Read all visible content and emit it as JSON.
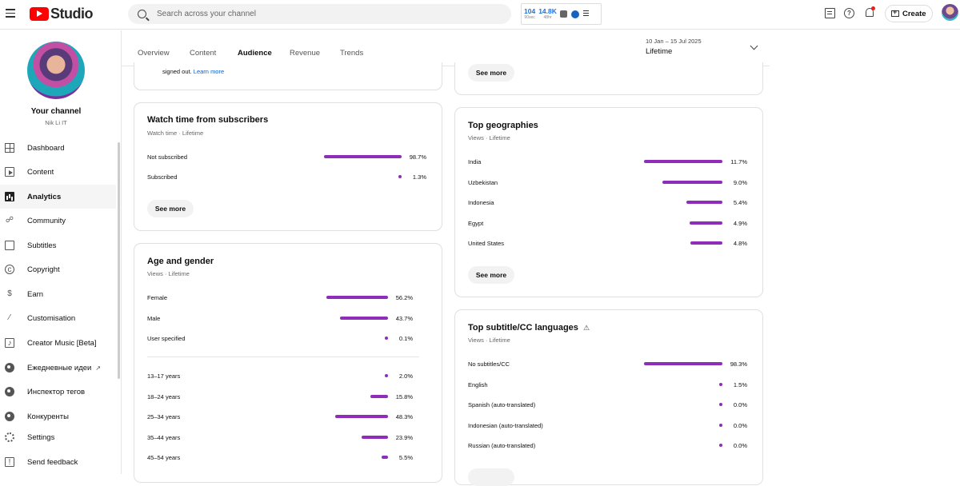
{
  "app": {
    "logo_text": "Studio",
    "search_placeholder": "Search across your channel"
  },
  "extension": {
    "stat1_value": "104",
    "stat1_label": "90sec",
    "stat2_value": "14.8K",
    "stat2_label": "48hr"
  },
  "header": {
    "create_label": "Create"
  },
  "channel": {
    "title": "Your channel",
    "name": "Nik Li IT"
  },
  "sidebar": {
    "items": [
      {
        "label": "Dashboard",
        "icon": "dashboard-icon"
      },
      {
        "label": "Content",
        "icon": "content-icon"
      },
      {
        "label": "Analytics",
        "icon": "analytics-icon",
        "active": true
      },
      {
        "label": "Community",
        "icon": "community-icon"
      },
      {
        "label": "Subtitles",
        "icon": "subtitles-icon"
      },
      {
        "label": "Copyright",
        "icon": "copyright-icon"
      },
      {
        "label": "Earn",
        "icon": "dollar-icon"
      },
      {
        "label": "Customisation",
        "icon": "magic-wand-icon"
      },
      {
        "label": "Creator Music [Beta]",
        "icon": "music-icon"
      },
      {
        "label": "Ежедневные идеи",
        "icon": "extension-icon"
      },
      {
        "label": "Инспектор тегов",
        "icon": "extension-icon"
      },
      {
        "label": "Конкуренты",
        "icon": "extension-icon"
      },
      {
        "label": "Settings",
        "icon": "gear-icon"
      },
      {
        "label": "Send feedback",
        "icon": "feedback-icon"
      }
    ]
  },
  "tabs": {
    "items": [
      "Overview",
      "Content",
      "Audience",
      "Revenue",
      "Trends"
    ],
    "active": "Audience"
  },
  "date": {
    "range": "10 Jan – 15 Jul 2025",
    "selected": "Lifetime"
  },
  "cards": {
    "top_left_partial": {
      "text": "signed out.",
      "link": "Learn more"
    },
    "top_right_partial": {
      "button": "See more"
    },
    "subscribers": {
      "title": "Watch time from subscribers",
      "subtitle": "Watch time · Lifetime",
      "rows": [
        {
          "label": "Not subscribed",
          "value": "98.7%",
          "pct": 98.7
        },
        {
          "label": "Subscribed",
          "value": "1.3%",
          "pct": 1.3
        }
      ],
      "button": "See more"
    },
    "geographies": {
      "title": "Top geographies",
      "subtitle": "Views · Lifetime",
      "rows": [
        {
          "label": "India",
          "value": "11.7%",
          "pct": 11.7
        },
        {
          "label": "Uzbekistan",
          "value": "9.0%",
          "pct": 9.0
        },
        {
          "label": "Indonesia",
          "value": "5.4%",
          "pct": 5.4
        },
        {
          "label": "Egypt",
          "value": "4.9%",
          "pct": 4.9
        },
        {
          "label": "United States",
          "value": "4.8%",
          "pct": 4.8
        }
      ],
      "button": "See more"
    },
    "age_gender": {
      "title": "Age and gender",
      "subtitle": "Views · Lifetime",
      "gender_rows": [
        {
          "label": "Female",
          "value": "56.2%",
          "pct": 56.2
        },
        {
          "label": "Male",
          "value": "43.7%",
          "pct": 43.7
        },
        {
          "label": "User specified",
          "value": "0.1%",
          "pct": 0.1
        }
      ],
      "age_rows": [
        {
          "label": "13–17 years",
          "value": "2.0%",
          "pct": 2.0
        },
        {
          "label": "18–24 years",
          "value": "15.8%",
          "pct": 15.8
        },
        {
          "label": "25–34 years",
          "value": "48.3%",
          "pct": 48.3
        },
        {
          "label": "35–44 years",
          "value": "23.9%",
          "pct": 23.9
        },
        {
          "label": "45–54 years",
          "value": "5.5%",
          "pct": 5.5
        }
      ]
    },
    "subtitles": {
      "title": "Top subtitle/CC languages",
      "subtitle": "Views · Lifetime",
      "rows": [
        {
          "label": "No subtitles/CC",
          "value": "98.3%",
          "pct": 98.3
        },
        {
          "label": "English",
          "value": "1.5%",
          "pct": 1.5
        },
        {
          "label": "Spanish (auto-translated)",
          "value": "0.0%",
          "pct": 0.0
        },
        {
          "label": "Indonesian (auto-translated)",
          "value": "0.0%",
          "pct": 0.0
        },
        {
          "label": "Russian (auto-translated)",
          "value": "0.0%",
          "pct": 0.0
        }
      ]
    }
  },
  "colors": {
    "bar": "#8f2dba",
    "logo_red": "#ff0000",
    "link": "#065fd4"
  }
}
